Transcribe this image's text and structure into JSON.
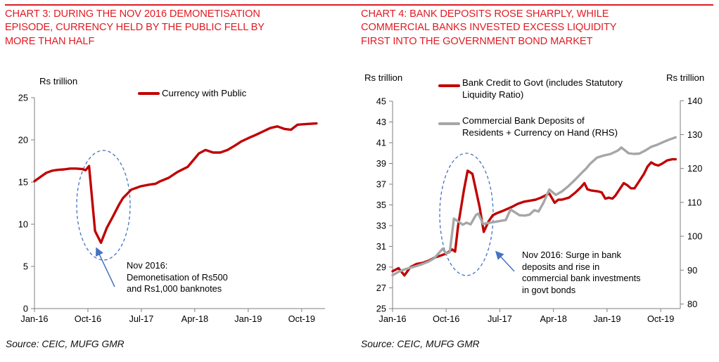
{
  "page": {
    "accent_red": "#e11b22",
    "blue": "#4472C4",
    "series_red": "#C00000",
    "series_gray": "#A6A6A6"
  },
  "chart_data": [
    {
      "id": "chart3",
      "type": "line",
      "title": "CHART 3: DURING THE NOV 2016 DEMONETISATION\nEPISODE, CURRENCY HELD BY THE PUBLIC FELL BY\nMORE THAN HALF",
      "y_label": "Rs trillion",
      "y_axis": {
        "min": 0,
        "max": 25,
        "step": 5,
        "tick_labels": [
          "0",
          "5",
          "10",
          "15",
          "20",
          "25"
        ]
      },
      "x_ticks": [
        {
          "m": 0,
          "label": "Jan-16"
        },
        {
          "m": 9,
          "label": "Oct-16"
        },
        {
          "m": 18,
          "label": "Jul-17"
        },
        {
          "m": 27,
          "label": "Apr-18"
        },
        {
          "m": 36,
          "label": "Jan-19"
        },
        {
          "m": 45,
          "label": "Oct-19"
        }
      ],
      "series": [
        {
          "name": "Currency with Public",
          "color": "#C00000",
          "axis": "left",
          "points": [
            [
              0,
              15.1
            ],
            [
              1,
              15.6
            ],
            [
              2,
              16.1
            ],
            [
              3,
              16.35
            ],
            [
              4,
              16.45
            ],
            [
              5,
              16.5
            ],
            [
              6,
              16.6
            ],
            [
              7,
              16.6
            ],
            [
              8,
              16.55
            ],
            [
              8.6,
              16.4
            ],
            [
              9.2,
              16.9
            ],
            [
              10.2,
              9.2
            ],
            [
              11.2,
              7.8
            ],
            [
              12.2,
              9.6
            ],
            [
              13.2,
              10.9
            ],
            [
              14.3,
              12.4
            ],
            [
              14.9,
              13.1
            ],
            [
              16.3,
              14.1
            ],
            [
              17.9,
              14.5
            ],
            [
              19.4,
              14.7
            ],
            [
              20.4,
              14.8
            ],
            [
              21.2,
              15.1
            ],
            [
              22.6,
              15.5
            ],
            [
              24.1,
              16.2
            ],
            [
              25.8,
              16.8
            ],
            [
              27,
              17.8
            ],
            [
              27.7,
              18.4
            ],
            [
              28.8,
              18.8
            ],
            [
              30.1,
              18.5
            ],
            [
              31.3,
              18.5
            ],
            [
              32.5,
              18.8
            ],
            [
              33.7,
              19.3
            ],
            [
              34.8,
              19.8
            ],
            [
              36,
              20.2
            ],
            [
              37.3,
              20.6
            ],
            [
              38.5,
              21.0
            ],
            [
              39.7,
              21.4
            ],
            [
              40.9,
              21.6
            ],
            [
              42.1,
              21.3
            ],
            [
              43.2,
              21.2
            ],
            [
              44.3,
              21.8
            ],
            [
              45.2,
              21.85
            ],
            [
              46.3,
              21.9
            ],
            [
              47.5,
              21.95
            ]
          ]
        }
      ],
      "annotations": [
        {
          "text": "Nov 2016:\nDemonetisation of Rs500\nand Rs1,000 banknotes"
        }
      ],
      "source": "Source: CEIC, MUFG GMR"
    },
    {
      "id": "chart4",
      "type": "line",
      "title": "CHART 4: BANK DEPOSITS ROSE SHARPLY, WHILE\nCOMMERCIAL BANKS INVESTED EXCESS LIQUIDITY\nFIRST INTO THE GOVERNMENT BOND MARKET",
      "y_label": "Rs trillion",
      "y2_label": "Rs trillion",
      "y_axis": {
        "min": 25,
        "max": 45,
        "step": 2,
        "tick_labels": [
          "25",
          "27",
          "29",
          "31",
          "33",
          "35",
          "37",
          "39",
          "41",
          "43",
          "45"
        ]
      },
      "y2_axis": {
        "min": 80,
        "max": 140,
        "step": 10,
        "tick_labels": [
          "80",
          "90",
          "100",
          "110",
          "120",
          "130",
          "140"
        ]
      },
      "x_ticks": [
        {
          "m": 0,
          "label": "Jan-16"
        },
        {
          "m": 9,
          "label": "Oct-16"
        },
        {
          "m": 18,
          "label": "Jul-17"
        },
        {
          "m": 27,
          "label": "Apr-18"
        },
        {
          "m": 36,
          "label": "Jan-19"
        },
        {
          "m": 45,
          "label": "Oct-19"
        }
      ],
      "series": [
        {
          "name": "Bank Credit to Govt (includes Statutory\nLiquidity Ratio)",
          "color": "#C00000",
          "axis": "left",
          "points": [
            [
              0,
              28.6
            ],
            [
              1,
              28.9
            ],
            [
              2,
              28.2
            ],
            [
              3,
              29.0
            ],
            [
              4,
              29.3
            ],
            [
              5,
              29.4
            ],
            [
              6,
              29.6
            ],
            [
              7,
              29.9
            ],
            [
              8,
              30.1
            ],
            [
              9,
              30.3
            ],
            [
              10,
              30.7
            ],
            [
              10.5,
              30.5
            ],
            [
              11,
              33.0
            ],
            [
              12,
              36.5
            ],
            [
              12.6,
              38.3
            ],
            [
              13.4,
              38.0
            ],
            [
              14,
              36.4
            ],
            [
              14.6,
              34.8
            ],
            [
              15.3,
              32.4
            ],
            [
              16.1,
              33.4
            ],
            [
              16.8,
              34.0
            ],
            [
              17.5,
              34.2
            ],
            [
              18.4,
              34.4
            ],
            [
              19.2,
              34.6
            ],
            [
              20,
              34.8
            ],
            [
              21,
              35.1
            ],
            [
              22,
              35.3
            ],
            [
              23,
              35.4
            ],
            [
              24,
              35.5
            ],
            [
              24.9,
              35.7
            ],
            [
              26.3,
              36.1
            ],
            [
              27.2,
              35.2
            ],
            [
              27.8,
              35.5
            ],
            [
              28.4,
              35.5
            ],
            [
              29,
              35.6
            ],
            [
              29.6,
              35.7
            ],
            [
              30.7,
              36.2
            ],
            [
              31.6,
              36.7
            ],
            [
              32.2,
              37.1
            ],
            [
              32.7,
              36.5
            ],
            [
              33.3,
              36.4
            ],
            [
              34.5,
              36.3
            ],
            [
              35.1,
              36.2
            ],
            [
              35.7,
              35.6
            ],
            [
              36.3,
              35.7
            ],
            [
              36.9,
              35.6
            ],
            [
              37.4,
              35.9
            ],
            [
              38.2,
              36.6
            ],
            [
              38.8,
              37.1
            ],
            [
              39.4,
              36.9
            ],
            [
              40,
              36.6
            ],
            [
              40.6,
              36.6
            ],
            [
              41.4,
              37.3
            ],
            [
              42.2,
              38.0
            ],
            [
              42.8,
              38.7
            ],
            [
              43.4,
              39.1
            ],
            [
              44,
              38.9
            ],
            [
              44.6,
              38.8
            ],
            [
              45.3,
              39.0
            ],
            [
              46.1,
              39.3
            ],
            [
              46.9,
              39.4
            ],
            [
              47.5,
              39.4
            ]
          ]
        },
        {
          "name": "Commercial Bank Deposits of\nResidents + Currency on Hand (RHS)",
          "color": "#A6A6A6",
          "axis": "right",
          "points": [
            [
              0,
              88.5
            ],
            [
              1,
              89.5
            ],
            [
              2,
              90.2
            ],
            [
              3,
              90.7
            ],
            [
              4,
              91.2
            ],
            [
              5,
              91.8
            ],
            [
              6,
              92.5
            ],
            [
              7,
              93.5
            ],
            [
              8.4,
              96.3
            ],
            [
              9,
              94.9
            ],
            [
              9.6,
              95.3
            ],
            [
              10.3,
              105.2
            ],
            [
              11,
              104.4
            ],
            [
              11.8,
              103.4
            ],
            [
              12.4,
              104.0
            ],
            [
              13.1,
              103.5
            ],
            [
              14,
              106.3
            ],
            [
              14.4,
              106.7
            ],
            [
              15.2,
              103.6
            ],
            [
              16,
              103.9
            ],
            [
              17,
              104.2
            ],
            [
              18,
              104.5
            ],
            [
              19,
              104.8
            ],
            [
              19.8,
              107.9
            ],
            [
              20.6,
              107.0
            ],
            [
              21.3,
              106.2
            ],
            [
              22.2,
              106.1
            ],
            [
              23,
              106.4
            ],
            [
              23.8,
              107.7
            ],
            [
              24.5,
              107.3
            ],
            [
              25.3,
              109.8
            ],
            [
              26.3,
              113.8
            ],
            [
              27.4,
              112.2
            ],
            [
              28.4,
              113.2
            ],
            [
              29.5,
              114.8
            ],
            [
              30.7,
              116.8
            ],
            [
              31.9,
              119.0
            ],
            [
              32.5,
              120.0
            ],
            [
              33.1,
              121.3
            ],
            [
              34.3,
              123.2
            ],
            [
              35.4,
              123.8
            ],
            [
              36.6,
              124.3
            ],
            [
              37.8,
              125.3
            ],
            [
              38.4,
              126.2
            ],
            [
              39.6,
              124.5
            ],
            [
              40.5,
              124.3
            ],
            [
              41.4,
              124.4
            ],
            [
              42.4,
              125.3
            ],
            [
              43.4,
              126.4
            ],
            [
              44.4,
              127.0
            ],
            [
              45.3,
              127.7
            ],
            [
              46.4,
              128.5
            ],
            [
              47.5,
              129.2
            ]
          ]
        }
      ],
      "annotations": [
        {
          "text": "Nov 2016: Surge in bank\ndeposits and rise in\ncommercial bank investments\nin govt bonds"
        }
      ],
      "source": "Source: CEIC, MUFG GMR"
    }
  ]
}
